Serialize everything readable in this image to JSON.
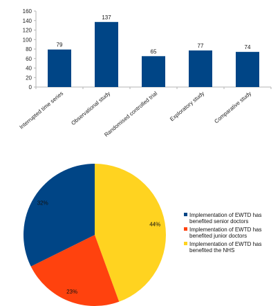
{
  "chart_data": [
    {
      "type": "bar",
      "categories": [
        "Interrupted time series",
        "Observational study",
        "Randomised controlled trial",
        "Exploratory study",
        "Comparative study"
      ],
      "values": [
        79,
        137,
        65,
        77,
        74
      ],
      "ylim": [
        0,
        160
      ],
      "yticks": [
        0,
        20,
        40,
        60,
        80,
        100,
        120,
        140,
        160
      ],
      "grid": false,
      "bar_color": "#004586"
    },
    {
      "type": "pie",
      "start_angle_deg": 0,
      "direction": "clockwise",
      "slices": [
        {
          "label": "Implementation of EWTD has benefited the NHS",
          "value": 44,
          "display": "44%",
          "color": "#ffd320"
        },
        {
          "label": "Implementation of EWTD has benefited junior doctors",
          "value": 23,
          "display": "23%",
          "color": "#ff420e"
        },
        {
          "label": "Implementation of EWTD has benefited senior doctors",
          "value": 32,
          "display": "32%",
          "color": "#004586"
        }
      ],
      "legend": [
        {
          "text": [
            "Implementation of EWTD has",
            "benefited senior doctors"
          ],
          "color": "#004586"
        },
        {
          "text": [
            "Implementation of EWTD has",
            "benefited junior doctors"
          ],
          "color": "#ff420e"
        },
        {
          "text": [
            "Implementation of EWTD has",
            "benefited the NHS"
          ],
          "color": "#ffd320"
        }
      ],
      "legend_position": "right"
    }
  ]
}
